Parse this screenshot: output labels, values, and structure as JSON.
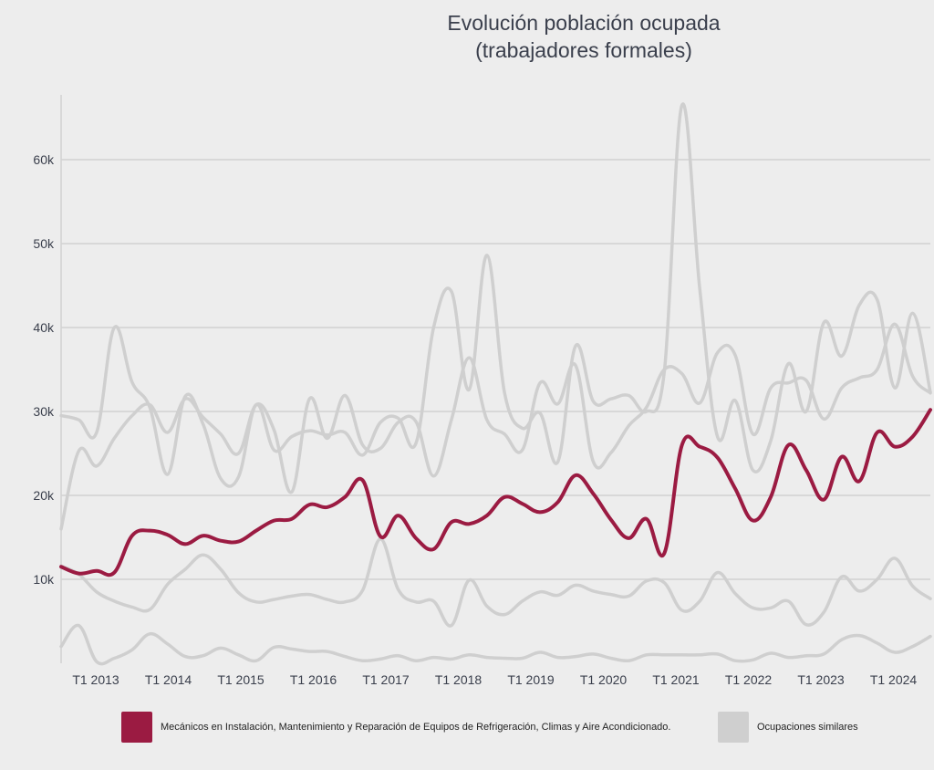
{
  "chart_data": {
    "type": "line",
    "title_line1": "Evolución población ocupada",
    "title_line2": "(trabajadores formales)",
    "xlabel": "",
    "ylabel": "",
    "ylim": [
      0,
      70000
    ],
    "y_ticks": [
      10000,
      20000,
      30000,
      40000,
      50000,
      60000
    ],
    "y_tick_labels": [
      "10k",
      "20k",
      "30k",
      "40k",
      "50k",
      "60k"
    ],
    "x_tick_labels": [
      "T1 2013",
      "T1 2014",
      "T1 2015",
      "T1 2016",
      "T1 2017",
      "T1 2018",
      "T1 2019",
      "T1 2020",
      "T1 2021",
      "T1 2022",
      "T1 2023",
      "T1 2024"
    ],
    "x_start": "T1 2013",
    "grid": true,
    "legend_position": "bottom",
    "colors": {
      "highlight": "#9b1b42",
      "similar": "#cfcfcf",
      "grid": "#d2d2d2",
      "background": "#ededed"
    },
    "series": [
      {
        "name": "Mecánicos en Instalación, Mantenimiento y Reparación de Equipos de Refrigeración, Climas y Aire Acondicionado.",
        "highlight": true,
        "values": [
          11500,
          10700,
          11000,
          10800,
          15200,
          15800,
          15300,
          14200,
          15200,
          14600,
          14500,
          15800,
          17000,
          17200,
          18900,
          18600,
          19800,
          21800,
          15100,
          17600,
          14900,
          13600,
          16800,
          16600,
          17600,
          19800,
          19000,
          18000,
          19200,
          22400,
          20200,
          17100,
          14900,
          17200,
          13100,
          26000,
          25800,
          24500,
          20800,
          17000,
          19800,
          26000,
          23000,
          19500,
          24600,
          21700,
          27500,
          25800,
          27000,
          30200
        ]
      },
      {
        "name": "Ocupaciones similares",
        "values": [
          29500,
          29000,
          27500,
          40000,
          33500,
          30500,
          22500,
          31800,
          28500,
          22000,
          22200,
          30800,
          25400,
          27000,
          27700,
          27200,
          27500,
          24800,
          28700,
          29200,
          26200,
          40000,
          44300,
          32600,
          48600,
          32200,
          28000,
          29800,
          24000,
          37800,
          31200,
          31500,
          31900,
          30000,
          34700,
          66500,
          44600,
          27000,
          31300,
          23000,
          26500,
          35700,
          30000,
          40600,
          36600,
          42700,
          43300,
          32800,
          41700,
          32300
        ]
      },
      {
        "name": "Ocupaciones similares",
        "values": [
          16000,
          25300,
          23500,
          26800,
          29500,
          30800,
          27500,
          31500,
          29300,
          27300,
          25000,
          30800,
          27800,
          20400,
          31500,
          26800,
          31900,
          26000,
          25600,
          28700,
          28800,
          22300,
          29000,
          36400,
          29000,
          27300,
          25400,
          33400,
          30900,
          35500,
          24000,
          25100,
          28300,
          30500,
          35000,
          34500,
          31000,
          37000,
          36700,
          27300,
          32800,
          33400,
          33700,
          29100,
          32800,
          34000,
          35000,
          40400,
          34200,
          32200
        ]
      },
      {
        "name": "Ocupaciones similares",
        "values": [
          11600,
          10600,
          8500,
          7400,
          6700,
          6400,
          9400,
          11200,
          12900,
          11200,
          8400,
          7300,
          7600,
          8000,
          8200,
          7600,
          7300,
          8700,
          14800,
          8800,
          7300,
          7400,
          4500,
          9900,
          6800,
          5800,
          7400,
          8500,
          8100,
          9300,
          8600,
          8200,
          8000,
          9800,
          9600,
          6300,
          7400,
          10800,
          8300,
          6600,
          6600,
          7400,
          4600,
          6100,
          10300,
          8600,
          10000,
          12500,
          9200,
          7700
        ]
      },
      {
        "name": "Ocupaciones similares",
        "values": [
          2000,
          4500,
          200,
          600,
          1600,
          3500,
          2300,
          800,
          900,
          1800,
          1000,
          300,
          1900,
          1700,
          1400,
          1400,
          800,
          300,
          500,
          900,
          300,
          700,
          500,
          1000,
          700,
          600,
          600,
          1300,
          700,
          800,
          1100,
          600,
          300,
          1000,
          1000,
          1000,
          1000,
          1100,
          300,
          400,
          1200,
          700,
          900,
          1100,
          2800,
          3300,
          2400,
          1300,
          2000,
          3200
        ]
      }
    ]
  },
  "legend": {
    "highlight_label": "Mecánicos en Instalación, Mantenimiento y Reparación de Equipos de Refrigeración, Climas y Aire Acondicionado.",
    "similar_label": "Ocupaciones similares"
  }
}
